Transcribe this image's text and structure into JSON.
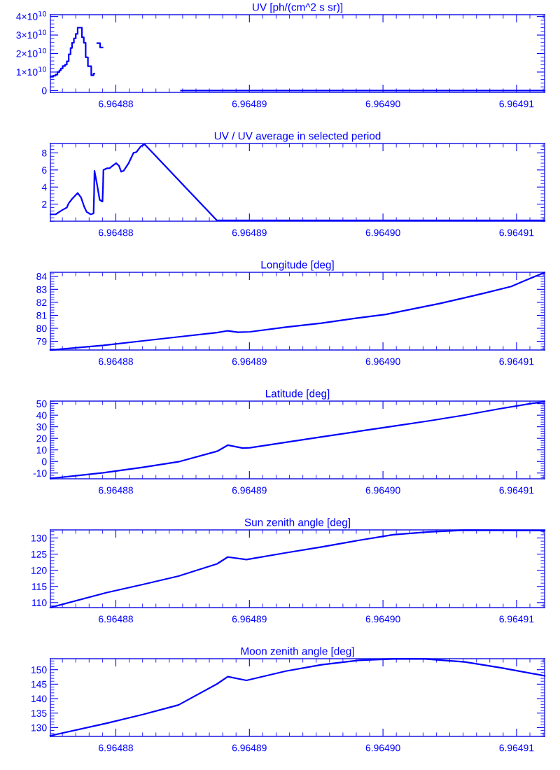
{
  "chart_data": [
    {
      "type": "step",
      "title": "UV [ph/(cm^2 s sr)]",
      "color": "#0000ff",
      "x": [
        6.96487511,
        6.96487532,
        6.96487549,
        6.96487563,
        6.96487577,
        6.96487588,
        6.96487602,
        6.96487619,
        6.96487633,
        6.96487647,
        6.96487661,
        6.96487672,
        6.96487686,
        6.964877,
        6.96487714,
        6.96487746,
        6.9648776,
        6.96487774,
        6.96487791,
        6.96487816,
        6.96487833,
        6.96487839,
        6.96487861,
        6.96487882,
        6.964879,
        6.96488488,
        6.9649121
      ],
      "values": [
        7500000000.0,
        8000000000.0,
        8600000000.0,
        10000000000.0,
        10900000000.0,
        11900000000.0,
        13200000000.0,
        14000000000.0,
        15800000000.0,
        19600000000.0,
        23000000000.0,
        25800000000.0,
        28200000000.0,
        30600000000.0,
        34000000000.0,
        28800000000.0,
        25800000000.0,
        18000000000.0,
        13100000000.0,
        8200000000.0,
        9200000000.0,
        null,
        25600000000.0,
        23300000000.0,
        null,
        0,
        0
      ],
      "xlim": [
        6.9648751,
        6.9649121
      ],
      "xticks": [
        {
          "value": 6.96488,
          "label": "6.96488"
        },
        {
          "value": 6.96489,
          "label": "6.96489"
        },
        {
          "value": 6.9649,
          "label": "6.96490"
        },
        {
          "value": 6.96491,
          "label": "6.96491"
        }
      ],
      "ylim": [
        -1000000000.0,
        41000000000.0
      ],
      "yticks": [
        {
          "value": 0,
          "label": "0"
        },
        {
          "value": 10000000000.0,
          "label": "1×10$^{10}$"
        },
        {
          "value": 20000000000.0,
          "label": "2×10$^{10}$"
        },
        {
          "value": 30000000000.0,
          "label": "3×10$^{10}$"
        },
        {
          "value": 40000000000.0,
          "label": "4×10$^{10}$"
        }
      ]
    },
    {
      "type": "line",
      "title": "UV / UV average in selected period",
      "color": "#0000ff",
      "x": [
        6.96487511,
        6.96487549,
        6.96487598,
        6.96487633,
        6.96487647,
        6.96487672,
        6.96487714,
        6.96487739,
        6.96487763,
        6.96487781,
        6.96487812,
        6.96487833,
        6.96487837,
        6.9648784,
        6.96487858,
        6.96487879,
        6.964879,
        6.96487904,
        6.96487907,
        6.96487935,
        6.96487953,
        6.96487977,
        6.96488002,
        6.96488023,
        6.9648804,
        6.96488058,
        6.96488096,
        6.96488132,
        6.96488154,
        6.96488189,
        6.96488216,
        6.96488756,
        6.9649121
      ],
      "values": [
        0.8,
        0.8,
        1.3,
        1.6,
        2.1,
        2.6,
        3.3,
        2.8,
        1.7,
        1.1,
        0.8,
        0.9,
        3.1,
        5.9,
        4.4,
        2.5,
        2.3,
        4.1,
        6.0,
        6.2,
        6.2,
        6.5,
        6.8,
        6.5,
        5.8,
        5.9,
        6.8,
        8.0,
        8.1,
        8.8,
        9.0,
        0.1,
        0.1
      ],
      "xlim": [
        6.9648751,
        6.9649121
      ],
      "xticks": [
        {
          "value": 6.96488,
          "label": "6.96488"
        },
        {
          "value": 6.96489,
          "label": "6.96489"
        },
        {
          "value": 6.9649,
          "label": "6.96490"
        },
        {
          "value": 6.96491,
          "label": "6.96491"
        }
      ],
      "ylim": [
        0,
        9.1
      ],
      "yticks": [
        2,
        4,
        6,
        8
      ]
    },
    {
      "type": "line",
      "title": "Longitude [deg]",
      "color": "#0000ff",
      "x": [
        6.9648751,
        6.96487906,
        6.96488201,
        6.96488469,
        6.96488758,
        6.96488838,
        6.96488914,
        6.96489005,
        6.96489272,
        6.9648954,
        6.96489808,
        6.96490022,
        6.9649021,
        6.96490424,
        6.96490612,
        6.96490773,
        6.9649096,
        6.96491067,
        6.96491207
      ],
      "values": [
        78.33,
        78.69,
        79.03,
        79.34,
        79.67,
        79.81,
        79.7,
        79.73,
        80.09,
        80.4,
        80.79,
        81.07,
        81.46,
        81.91,
        82.35,
        82.74,
        83.22,
        83.69,
        84.28
      ],
      "xlim": [
        6.9648751,
        6.9649121
      ],
      "xticks": [
        {
          "value": 6.96488,
          "label": "6.96488"
        },
        {
          "value": 6.96489,
          "label": "6.96489"
        },
        {
          "value": 6.9649,
          "label": "6.96490"
        },
        {
          "value": 6.96491,
          "label": "6.96491"
        }
      ],
      "ylim": [
        78.33,
        84.31
      ],
      "yticks": [
        79,
        80,
        81,
        82,
        83,
        84
      ]
    },
    {
      "type": "line",
      "title": "Latitude [deg]",
      "color": "#0000ff",
      "x": [
        6.9648751,
        6.96487906,
        6.96488201,
        6.96488469,
        6.96488758,
        6.96488838,
        6.9648895,
        6.96489005,
        6.96489272,
        6.9648954,
        6.96489808,
        6.96490076,
        6.96490344,
        6.96490612,
        6.9649088,
        6.96491207
      ],
      "values": [
        -14.7,
        -9.8,
        -5.1,
        -0.3,
        8.8,
        14.1,
        11.6,
        11.9,
        16.6,
        21.2,
        25.9,
        30.5,
        35.1,
        40.1,
        45.7,
        51.9
      ],
      "xlim": [
        6.9648751,
        6.9649121
      ],
      "xticks": [
        {
          "value": 6.96488,
          "label": "6.96488"
        },
        {
          "value": 6.96489,
          "label": "6.96489"
        },
        {
          "value": 6.9649,
          "label": "6.96490"
        },
        {
          "value": 6.96491,
          "label": "6.96491"
        }
      ],
      "ylim": [
        -15,
        52.2
      ],
      "yticks": [
        -10,
        0,
        10,
        20,
        30,
        40,
        50
      ]
    },
    {
      "type": "line",
      "title": "Sun zenith angle [deg]",
      "color": "#0000ff",
      "x": [
        6.9648751,
        6.96487933,
        6.96488201,
        6.96488469,
        6.96488758,
        6.96488838,
        6.96488978,
        6.96489272,
        6.9648954,
        6.96489808,
        6.96490076,
        6.96490344,
        6.96490612,
        6.9649121
      ],
      "values": [
        108.5,
        113.1,
        115.6,
        118.2,
        122.0,
        124.1,
        123.3,
        125.4,
        127.2,
        129.2,
        131.0,
        131.9,
        132.4,
        132.3
      ],
      "xlim": [
        6.9648751,
        6.9649121
      ],
      "xticks": [
        {
          "value": 6.96488,
          "label": "6.96488"
        },
        {
          "value": 6.96489,
          "label": "6.96489"
        },
        {
          "value": 6.9649,
          "label": "6.96490"
        },
        {
          "value": 6.96491,
          "label": "6.96491"
        }
      ],
      "ylim": [
        108.45,
        132.5
      ],
      "yticks": [
        110,
        115,
        120,
        125,
        130
      ]
    },
    {
      "type": "line",
      "title": "Moon zenith angle [deg]",
      "color": "#0000ff",
      "x": [
        6.9648751,
        6.96487933,
        6.96488201,
        6.96488469,
        6.96488758,
        6.96488838,
        6.96488978,
        6.96489272,
        6.9648954,
        6.96489808,
        6.96490076,
        6.96490317,
        6.96490612,
        6.9649088,
        6.9649121
      ],
      "values": [
        127.2,
        131.5,
        134.5,
        137.8,
        145.1,
        147.6,
        146.3,
        149.5,
        151.7,
        153.2,
        153.7,
        153.7,
        152.7,
        150.7,
        147.9
      ],
      "xlim": [
        6.9648751,
        6.9649121
      ],
      "xticks": [
        {
          "value": 6.96488,
          "label": "6.96488"
        },
        {
          "value": 6.96489,
          "label": "6.96489"
        },
        {
          "value": 6.9649,
          "label": "6.96490"
        },
        {
          "value": 6.96491,
          "label": "6.96491"
        }
      ],
      "ylim": [
        126.95,
        153.8
      ],
      "yticks": [
        130,
        135,
        140,
        145,
        150
      ]
    }
  ]
}
